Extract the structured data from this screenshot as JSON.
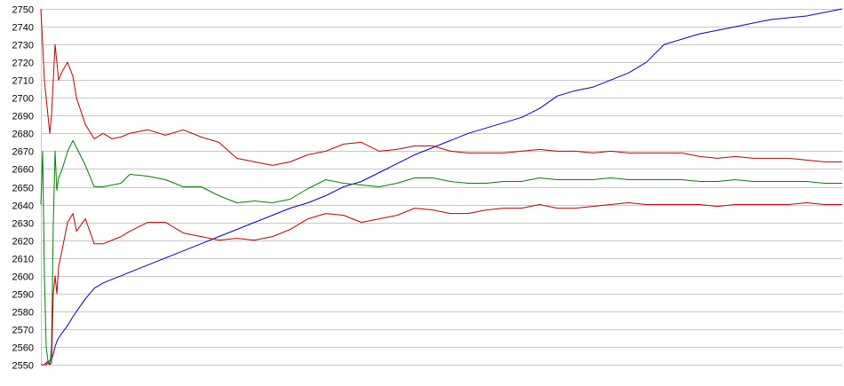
{
  "chart_data": {
    "type": "line",
    "title": "",
    "xlabel": "",
    "ylabel": "",
    "ylim": [
      2550,
      2750
    ],
    "yticks": [
      2550,
      2560,
      2570,
      2580,
      2590,
      2600,
      2610,
      2620,
      2630,
      2640,
      2650,
      2660,
      2670,
      2680,
      2690,
      2700,
      2710,
      2720,
      2730,
      2740,
      2750
    ],
    "xlim": [
      0,
      450
    ],
    "grid": true,
    "legend": "none",
    "x": [
      0,
      1,
      2,
      3,
      4,
      5,
      6,
      7,
      8,
      9,
      10,
      12,
      15,
      18,
      20,
      25,
      30,
      35,
      40,
      45,
      50,
      60,
      70,
      80,
      90,
      100,
      110,
      120,
      130,
      140,
      150,
      160,
      170,
      180,
      190,
      200,
      210,
      220,
      230,
      240,
      250,
      260,
      270,
      280,
      290,
      300,
      310,
      320,
      330,
      340,
      350,
      360,
      370,
      380,
      390,
      400,
      410,
      420,
      430,
      440,
      450
    ],
    "series": [
      {
        "color": "#0000c8",
        "values": [
          2550,
          2550,
          2550,
          2551,
          2552,
          2552,
          2553,
          2556,
          2560,
          2563,
          2565,
          2568,
          2572,
          2577,
          2580,
          2587,
          2593,
          2596,
          2598,
          2600,
          2602,
          2606,
          2610,
          2614,
          2618,
          2622,
          2626,
          2630,
          2634,
          2638,
          2641,
          2645,
          2650,
          2653,
          2658,
          2663,
          2668,
          2672,
          2676,
          2680,
          2683,
          2686,
          2689,
          2694,
          2701,
          2704,
          2706,
          2710,
          2714,
          2720,
          2730,
          2733,
          2736,
          2738,
          2740,
          2742,
          2744,
          2745,
          2746,
          2748,
          2750
        ]
      },
      {
        "color": "#c00000",
        "values": [
          2750,
          2730,
          2710,
          2700,
          2690,
          2680,
          2690,
          2710,
          2730,
          2720,
          2710,
          2715,
          2720,
          2712,
          2700,
          2685,
          2677,
          2680,
          2677,
          2678,
          2680,
          2682,
          2679,
          2682,
          2678,
          2675,
          2666,
          2664,
          2662,
          2664,
          2668,
          2670,
          2674,
          2675,
          2670,
          2671,
          2673,
          2673,
          2670,
          2669,
          2669,
          2669,
          2670,
          2671,
          2670,
          2670,
          2669,
          2670,
          2669,
          2669,
          2669,
          2669,
          2667,
          2666,
          2667,
          2666,
          2666,
          2666,
          2665,
          2664,
          2664
        ]
      },
      {
        "color": "#008000",
        "values": [
          2640,
          2670,
          2600,
          2560,
          2552,
          2550,
          2560,
          2630,
          2670,
          2648,
          2655,
          2660,
          2670,
          2676,
          2672,
          2662,
          2650,
          2650,
          2651,
          2652,
          2657,
          2656,
          2654,
          2650,
          2650,
          2645,
          2641,
          2642,
          2641,
          2643,
          2649,
          2654,
          2652,
          2651,
          2650,
          2652,
          2655,
          2655,
          2653,
          2652,
          2652,
          2653,
          2653,
          2655,
          2654,
          2654,
          2654,
          2655,
          2654,
          2654,
          2654,
          2654,
          2653,
          2653,
          2654,
          2653,
          2653,
          2653,
          2653,
          2652,
          2652
        ]
      },
      {
        "color": "#c00000",
        "values": [
          2550,
          2550,
          2550,
          2550,
          2551,
          2550,
          2551,
          2590,
          2600,
          2590,
          2605,
          2615,
          2630,
          2635,
          2625,
          2632,
          2618,
          2618,
          2620,
          2622,
          2625,
          2630,
          2630,
          2624,
          2622,
          2620,
          2621,
          2620,
          2622,
          2626,
          2632,
          2635,
          2634,
          2630,
          2632,
          2634,
          2638,
          2637,
          2635,
          2635,
          2637,
          2638,
          2638,
          2640,
          2638,
          2638,
          2639,
          2640,
          2641,
          2640,
          2640,
          2640,
          2640,
          2639,
          2640,
          2640,
          2640,
          2640,
          2641,
          2640,
          2640
        ]
      }
    ]
  }
}
